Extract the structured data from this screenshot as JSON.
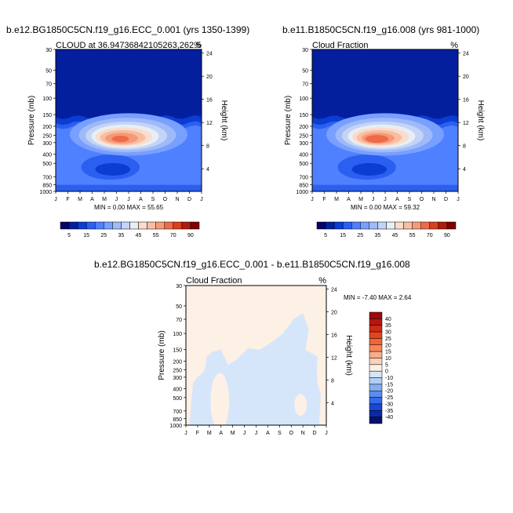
{
  "chart_data": [
    {
      "type": "heatmap",
      "subtype": "filled-contour",
      "title": "b.e12.BG1850C5CN.f19_g16.ECC_0.001 (yrs 1350-1399)",
      "left_label": "CLOUD at 36.94736842105263,262.5",
      "right_label": "%",
      "xlabel": "",
      "ylabel": "Pressure (mb)",
      "y2label": "Height (km)",
      "x_ticks": [
        "J",
        "F",
        "M",
        "A",
        "M",
        "J",
        "J",
        "A",
        "S",
        "O",
        "N",
        "D",
        "J"
      ],
      "y_ticks": [
        "30",
        "50",
        "70",
        "100",
        "150",
        "200",
        "250",
        "300",
        "400",
        "500",
        "700",
        "850",
        "1000"
      ],
      "y2_ticks": [
        "24",
        "20",
        "16",
        "12",
        "8",
        "4"
      ],
      "stats": "MIN =   0.00 MAX =  55.65",
      "min": 0.0,
      "max": 55.65,
      "colorbar": {
        "labels": [
          "5",
          "15",
          "25",
          "35",
          "45",
          "55",
          "70",
          "90"
        ],
        "levels": [
          5,
          10,
          15,
          20,
          25,
          30,
          35,
          40,
          45,
          50,
          55,
          60,
          70,
          80,
          90
        ],
        "colors": [
          "#040367",
          "#031f9e",
          "#0b3dd2",
          "#2b5ff0",
          "#4f80ff",
          "#799fff",
          "#9ebaf8",
          "#c4d4f6",
          "#e9edf5",
          "#f9dccb",
          "#f8bea2",
          "#f59a78",
          "#ef6a48",
          "#d8401f",
          "#b11a0c",
          "#7f0000"
        ]
      },
      "features": [
        {
          "name": "upper-tropospheric cloud maximum",
          "x_month_range": [
            "Apr",
            "Aug"
          ],
          "pressure_mb": 250,
          "approx_value": 50
        },
        {
          "name": "mid-level cloud minimum",
          "x_month_range": [
            "May",
            "Jul"
          ],
          "pressure_mb": 600,
          "approx_value": 5
        }
      ]
    },
    {
      "type": "heatmap",
      "subtype": "filled-contour",
      "title": "b.e11.B1850C5CN.f19_g16.008 (yrs 981-1000)",
      "left_label": "Cloud Fraction",
      "right_label": "%",
      "xlabel": "",
      "ylabel": "Pressure (mb)",
      "y2label": "Height (km)",
      "x_ticks": [
        "J",
        "F",
        "M",
        "A",
        "M",
        "J",
        "J",
        "A",
        "S",
        "O",
        "N",
        "D",
        "J"
      ],
      "y_ticks": [
        "30",
        "50",
        "70",
        "100",
        "150",
        "200",
        "250",
        "300",
        "400",
        "500",
        "700",
        "850",
        "1000"
      ],
      "y2_ticks": [
        "24",
        "20",
        "16",
        "12",
        "8",
        "4"
      ],
      "stats": "MIN =   0.00 MAX =  59.32",
      "min": 0.0,
      "max": 59.32,
      "colorbar": {
        "labels": [
          "5",
          "15",
          "25",
          "35",
          "45",
          "55",
          "70",
          "90"
        ],
        "levels": [
          5,
          10,
          15,
          20,
          25,
          30,
          35,
          40,
          45,
          50,
          55,
          60,
          70,
          80,
          90
        ],
        "colors": [
          "#040367",
          "#031f9e",
          "#0b3dd2",
          "#2b5ff0",
          "#4f80ff",
          "#799fff",
          "#9ebaf8",
          "#c4d4f6",
          "#e9edf5",
          "#f9dccb",
          "#f8bea2",
          "#f59a78",
          "#ef6a48",
          "#d8401f",
          "#b11a0c",
          "#7f0000"
        ]
      },
      "features": [
        {
          "name": "upper-tropospheric cloud maximum",
          "x_month_range": [
            "Apr",
            "Aug"
          ],
          "pressure_mb": 250,
          "approx_value": 55
        },
        {
          "name": "mid-level cloud minimum",
          "x_month_range": [
            "May",
            "Jul"
          ],
          "pressure_mb": 600,
          "approx_value": 5
        }
      ]
    },
    {
      "type": "heatmap",
      "subtype": "filled-contour-difference",
      "title": "b.e12.BG1850C5CN.f19_g16.ECC_0.001 - b.e11.B1850C5CN.f19_g16.008",
      "left_label": "Cloud Fraction",
      "right_label": "%",
      "xlabel": "",
      "ylabel": "Pressure (mb)",
      "y2label": "Height (km)",
      "x_ticks": [
        "J",
        "F",
        "M",
        "A",
        "M",
        "J",
        "J",
        "A",
        "S",
        "O",
        "N",
        "D",
        "J"
      ],
      "y_ticks": [
        "30",
        "50",
        "70",
        "100",
        "150",
        "200",
        "250",
        "300",
        "400",
        "500",
        "700",
        "850",
        "1000"
      ],
      "y2_ticks": [
        "24",
        "20",
        "16",
        "12",
        "8",
        "4"
      ],
      "stats": "MIN =  -7.40 MAX =   2.64",
      "min": -7.4,
      "max": 2.64,
      "colorbar": {
        "labels": [
          "40",
          "35",
          "30",
          "25",
          "20",
          "15",
          "10",
          "5",
          "0",
          "-10",
          "-15",
          "-20",
          "-25",
          "-30",
          "-35",
          "-40"
        ],
        "colors": [
          "#9b0b0b",
          "#b5170f",
          "#cc2b14",
          "#e3461f",
          "#f26436",
          "#f8865a",
          "#fcac86",
          "#fdd1b8",
          "#fdf0e4",
          "#d5e6fb",
          "#b2cdf6",
          "#86aef2",
          "#5a8df0",
          "#3569ea",
          "#1b47d2",
          "#0a2aa8",
          "#03136d"
        ]
      },
      "regions": [
        {
          "value_range": [
            0,
            5
          ],
          "description": "upper troposphere and stratosphere, most months"
        },
        {
          "value_range": [
            -10,
            0
          ],
          "description": "mid and lower troposphere, Feb–Dec"
        }
      ]
    }
  ]
}
